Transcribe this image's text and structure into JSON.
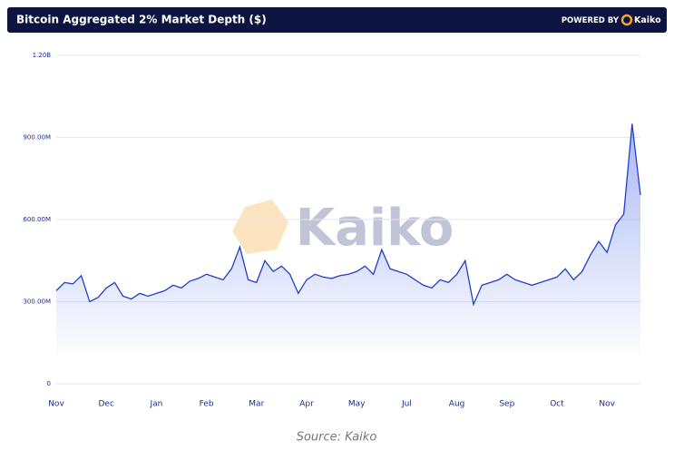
{
  "header": {
    "title": "Bitcoin Aggregated 2% Market Depth ($)",
    "powered_by": "POWERED BY",
    "brand": "Kaiko"
  },
  "chart_data": {
    "type": "line",
    "watermark": "Kaiko",
    "categories": [
      "Nov",
      null,
      null,
      null,
      null,
      null,
      "Dec",
      null,
      null,
      null,
      null,
      null,
      "Jan",
      null,
      null,
      null,
      null,
      null,
      "Feb",
      null,
      null,
      null,
      null,
      null,
      "Mar",
      null,
      null,
      null,
      null,
      null,
      "Apr",
      null,
      null,
      null,
      null,
      null,
      "May",
      null,
      null,
      null,
      null,
      null,
      "Jul",
      null,
      null,
      null,
      null,
      null,
      "Aug",
      null,
      null,
      null,
      null,
      null,
      "Sep",
      null,
      null,
      null,
      null,
      null,
      "Oct",
      null,
      null,
      null,
      null,
      null,
      "Nov",
      null,
      null,
      null,
      null
    ],
    "series": [
      {
        "name": "2% Market Depth",
        "color": "#1f3fcf",
        "values": [
          340000000,
          370000000,
          365000000,
          395000000,
          300000000,
          315000000,
          350000000,
          370000000,
          320000000,
          310000000,
          330000000,
          320000000,
          330000000,
          340000000,
          360000000,
          350000000,
          375000000,
          385000000,
          400000000,
          390000000,
          380000000,
          420000000,
          500000000,
          380000000,
          370000000,
          450000000,
          410000000,
          430000000,
          400000000,
          330000000,
          380000000,
          400000000,
          390000000,
          385000000,
          395000000,
          400000000,
          410000000,
          430000000,
          400000000,
          490000000,
          420000000,
          410000000,
          400000000,
          380000000,
          360000000,
          350000000,
          380000000,
          370000000,
          400000000,
          450000000,
          290000000,
          360000000,
          370000000,
          380000000,
          400000000,
          380000000,
          370000000,
          360000000,
          370000000,
          380000000,
          390000000,
          420000000,
          380000000,
          410000000,
          470000000,
          520000000,
          480000000,
          580000000,
          620000000,
          950000000,
          690000000
        ]
      }
    ],
    "ylim": [
      0,
      1200000000
    ],
    "yticks": [
      0,
      {
        "value": 300000000,
        "label": "300.00M"
      },
      {
        "value": 600000000,
        "label": "600.00M"
      },
      {
        "value": 900000000,
        "label": "900.00M"
      },
      {
        "value": 1200000000,
        "label": "1.20B"
      }
    ],
    "grid": true
  },
  "source": "Source: Kaiko"
}
